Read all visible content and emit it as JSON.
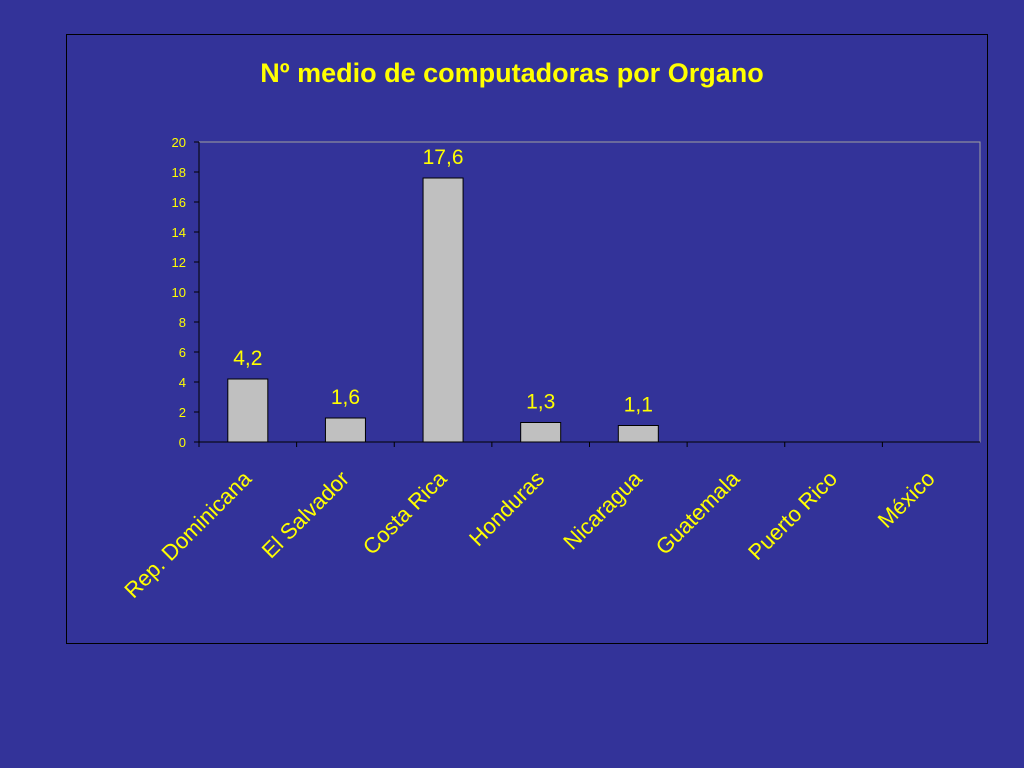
{
  "colors": {
    "background": "#333399",
    "text": "#ffff00",
    "bar_fill": "#c0c0c0",
    "bar_stroke": "#000000",
    "plot_border": "#a0a0a0"
  },
  "chart_data": {
    "type": "bar",
    "title": "Nº medio de computadoras por Organo",
    "xlabel": "",
    "ylabel": "",
    "categories": [
      "Rep. Dominicana",
      "El Salvador",
      "Costa Rica",
      "Honduras",
      "Nicaragua",
      "Guatemala",
      "Puerto Rico",
      "México"
    ],
    "values": [
      4.2,
      1.6,
      17.6,
      1.3,
      1.1,
      null,
      null,
      null
    ],
    "data_labels": [
      "4,2",
      "1,6",
      "17,6",
      "1,3",
      "1,1",
      "",
      "",
      ""
    ],
    "ylim": [
      0,
      20
    ],
    "yticks": [
      0,
      2,
      4,
      6,
      8,
      10,
      12,
      14,
      16,
      18,
      20
    ],
    "grid": false,
    "legend": "none"
  }
}
